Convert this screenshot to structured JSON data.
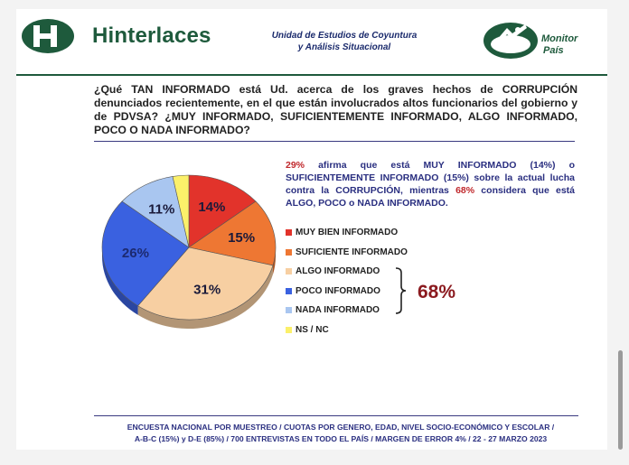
{
  "header": {
    "brand": "Hinterlaces",
    "unit_line1": "Unidad de Estudios de Coyuntura",
    "unit_line2": "y Análisis Situacional",
    "monitor_line1": "Monitor",
    "monitor_line2": "País"
  },
  "question": "¿Qué TAN INFORMADO está Ud. acerca de los graves hechos de CORRUPCIÓN denunciados recientemente, en el que están involucrados altos funcionarios del gobierno y de PDVSA? ¿MUY INFORMADO, SUFICIENTEMENTE INFORMADO, ALGO INFORMADO, POCO O NADA INFORMADO?",
  "summary": {
    "pct_a": "29%",
    "text_a": " afirma que está MUY INFORMADO (14%) o SUFICIENTEMENTE INFORMADO (15%) sobre la actual lucha contra la CORRUPCIÓN, mientras ",
    "pct_b": "68%",
    "text_b": " considera que está ALGO, POCO o NADA INFORMADO."
  },
  "group_label": "68%",
  "footer": {
    "line1": "ENCUESTA NACIONAL POR MUESTREO / CUOTAS POR GENERO, EDAD, NIVEL SOCIO-ECONÓMICO Y ESCOLAR /",
    "line2": "A-B-C (15%)  y  D-E (85%) / 700  ENTREVISTAS EN TODO EL PAÍS / MARGEN DE ERROR 4% / ",
    "date": "22 - 27 MARZO 2023"
  },
  "colors": {
    "brand_green": "#1e5a3c",
    "text_blue": "#2a2f80",
    "accent_red": "#c0282c"
  },
  "chart_data": {
    "type": "pie",
    "title": "",
    "legend_position": "right",
    "slices": [
      {
        "label": "MUY BIEN INFORMADO",
        "value": 14,
        "display": "14%",
        "color": "#e2332b"
      },
      {
        "label": "SUFICIENTE INFORMADO",
        "value": 15,
        "display": "15%",
        "color": "#ee7733"
      },
      {
        "label": "ALGO INFORMADO",
        "value": 31,
        "display": "31%",
        "color": "#f7cfa2"
      },
      {
        "label": "POCO INFORMADO",
        "value": 26,
        "display": "26%",
        "color": "#3a61e0"
      },
      {
        "label": "NADA INFORMADO",
        "value": 11,
        "display": "11%",
        "color": "#a9c6f0"
      },
      {
        "label": "NS / NC",
        "value": 3,
        "display": "3%",
        "color": "#fbf06a"
      }
    ]
  }
}
